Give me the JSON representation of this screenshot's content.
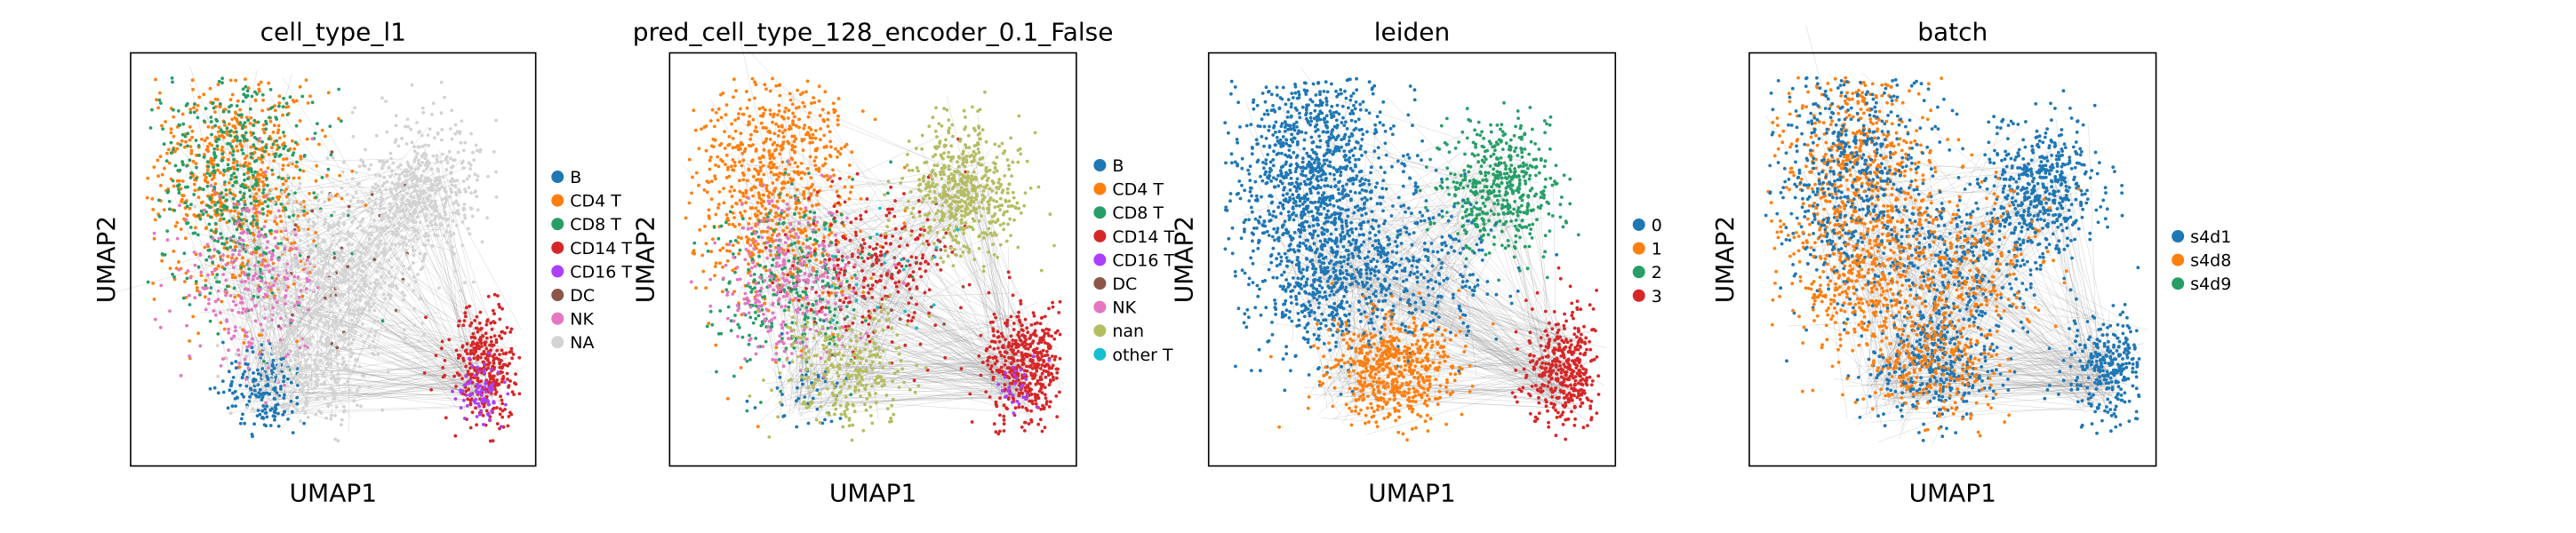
{
  "chart_data": [
    {
      "type": "scatter",
      "title": "cell_type_l1",
      "xlabel": "UMAP1",
      "ylabel": "UMAP2",
      "ticks": "none",
      "grid": false,
      "legend_placement": "right",
      "legend": [
        {
          "label": "B",
          "color": "#1f77b4"
        },
        {
          "label": "CD4 T",
          "color": "#ff7f0e"
        },
        {
          "label": "CD8 T",
          "color": "#279e68"
        },
        {
          "label": "CD14 T",
          "color": "#d62728"
        },
        {
          "label": "CD16 T",
          "color": "#aa40fc"
        },
        {
          "label": "DC",
          "color": "#8c564b"
        },
        {
          "label": "NK",
          "color": "#e377c2"
        },
        {
          "label": "NA",
          "color": "#d3d3d3"
        }
      ]
    },
    {
      "type": "scatter",
      "title": "pred_cell_type_128_encoder_0.1_False",
      "xlabel": "UMAP1",
      "ylabel": "UMAP2",
      "ticks": "none",
      "grid": false,
      "legend_placement": "right",
      "legend": [
        {
          "label": "B",
          "color": "#1f77b4"
        },
        {
          "label": "CD4 T",
          "color": "#ff7f0e"
        },
        {
          "label": "CD8 T",
          "color": "#279e68"
        },
        {
          "label": "CD14 T",
          "color": "#d62728"
        },
        {
          "label": "CD16 T",
          "color": "#aa40fc"
        },
        {
          "label": "DC",
          "color": "#8c564b"
        },
        {
          "label": "NK",
          "color": "#e377c2"
        },
        {
          "label": "nan",
          "color": "#b5bd61"
        },
        {
          "label": "other T",
          "color": "#17becf"
        }
      ]
    },
    {
      "type": "scatter",
      "title": "leiden",
      "xlabel": "UMAP1",
      "ylabel": "UMAP2",
      "ticks": "none",
      "grid": false,
      "legend_placement": "right",
      "legend": [
        {
          "label": "0",
          "color": "#1f77b4"
        },
        {
          "label": "1",
          "color": "#ff7f0e"
        },
        {
          "label": "2",
          "color": "#279e68"
        },
        {
          "label": "3",
          "color": "#d62728"
        }
      ]
    },
    {
      "type": "scatter",
      "title": "batch",
      "xlabel": "UMAP1",
      "ylabel": "UMAP2",
      "ticks": "none",
      "grid": false,
      "legend_placement": "right",
      "legend": [
        {
          "label": "s4d1",
          "color": "#1f77b4"
        },
        {
          "label": "s4d8",
          "color": "#ff7f0e"
        },
        {
          "label": "s4d9",
          "color": "#279e68"
        }
      ]
    }
  ]
}
